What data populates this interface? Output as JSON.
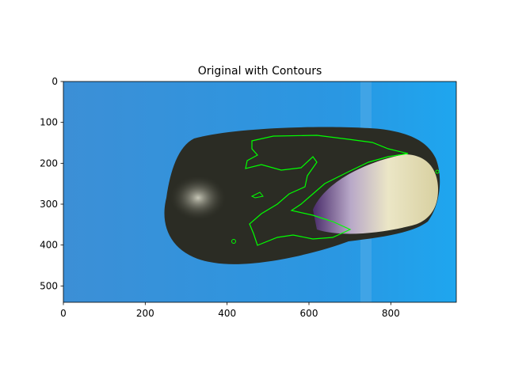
{
  "chart_data": {
    "type": "image",
    "title": "Original with Contours",
    "xlim": [
      0,
      960
    ],
    "ylim": [
      540,
      0
    ],
    "xticks": [
      0,
      200,
      400,
      600,
      800
    ],
    "yticks": [
      0,
      100,
      200,
      300,
      400,
      500
    ]
  }
}
